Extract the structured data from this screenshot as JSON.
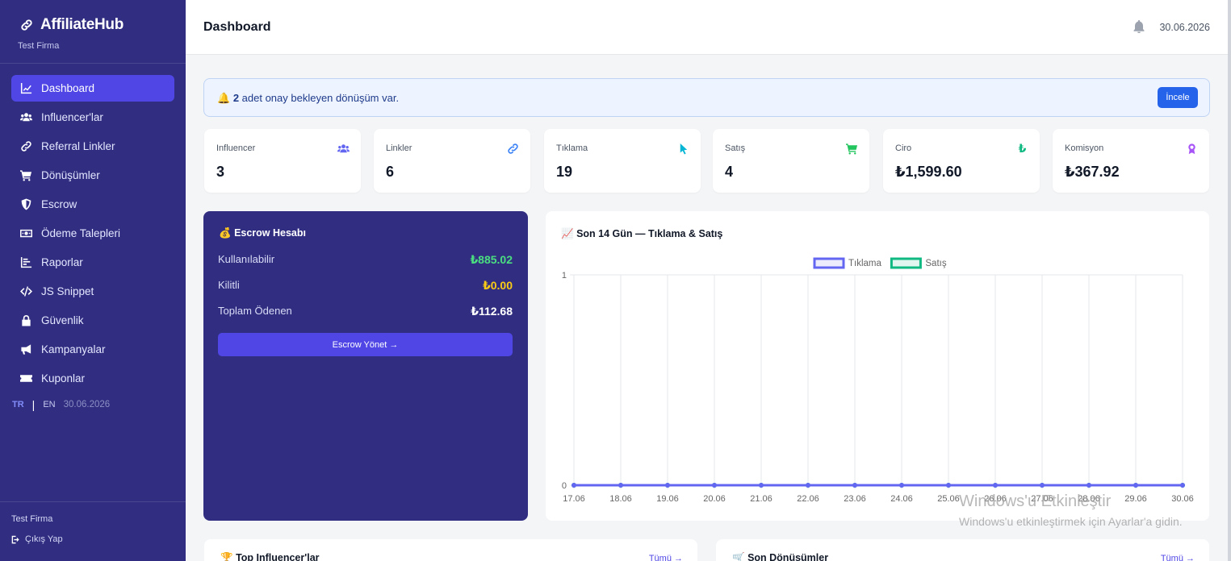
{
  "brand": {
    "name": "AffiliateHub",
    "company": "Test Firma"
  },
  "sidebar": {
    "items": [
      {
        "label": "Dashboard",
        "icon": "chart-line-icon",
        "active": true
      },
      {
        "label": "Influencer'lar",
        "icon": "users-icon"
      },
      {
        "label": "Referral Linkler",
        "icon": "link-icon"
      },
      {
        "label": "Dönüşümler",
        "icon": "cart-icon"
      },
      {
        "label": "Escrow",
        "icon": "shield-icon"
      },
      {
        "label": "Ödeme Talepleri",
        "icon": "money-icon"
      },
      {
        "label": "Raporlar",
        "icon": "bar-chart-icon"
      },
      {
        "label": "JS Snippet",
        "icon": "code-icon"
      },
      {
        "label": "Güvenlik",
        "icon": "lock-icon"
      },
      {
        "label": "Kampanyalar",
        "icon": "megaphone-icon"
      },
      {
        "label": "Kuponlar",
        "icon": "ticket-icon"
      }
    ],
    "lang_tr": "TR",
    "lang_sep": "|",
    "lang_en": "EN",
    "lang_date": "30.06.2026",
    "footer_company": "Test Firma",
    "logout": "Çıkış Yap"
  },
  "header": {
    "title": "Dashboard",
    "date": "30.06.2026"
  },
  "alert": {
    "count": "2",
    "text": " adet onay bekleyen dönüşüm var.",
    "button": "İncele"
  },
  "stats": [
    {
      "label": "Influencer",
      "value": "3",
      "icon": "users-icon",
      "color": "#6366f1"
    },
    {
      "label": "Linkler",
      "value": "6",
      "icon": "link-icon",
      "color": "#3b82f6"
    },
    {
      "label": "Tıklama",
      "value": "19",
      "icon": "pointer-icon",
      "color": "#06b6d4"
    },
    {
      "label": "Satış",
      "value": "4",
      "icon": "cart-icon",
      "color": "#22c55e"
    },
    {
      "label": "Ciro",
      "value": "₺1,599.60",
      "icon": "lira-icon",
      "color": "#10b981"
    },
    {
      "label": "Komisyon",
      "value": "₺367.92",
      "icon": "award-icon",
      "color": "#a855f7"
    }
  ],
  "escrow": {
    "title": "Escrow Hesabı",
    "available_label": "Kullanılabilir",
    "available_value": "₺885.02",
    "locked_label": "Kilitli",
    "locked_value": "₺0.00",
    "paid_label": "Toplam Ödenen",
    "paid_value": "₺112.68",
    "button": "Escrow Yönet →",
    "colors": {
      "available": "#4ade80",
      "locked": "#facc15",
      "paid": "#ffffff"
    }
  },
  "chart_panel": {
    "title": "Son 14 Gün — Tıklama & Satış"
  },
  "chart_data": {
    "type": "line",
    "x": [
      "17.06",
      "18.06",
      "19.06",
      "20.06",
      "21.06",
      "22.06",
      "23.06",
      "24.06",
      "25.06",
      "26.06",
      "27.06",
      "28.06",
      "29.06",
      "30.06"
    ],
    "series": [
      {
        "name": "Tıklama",
        "values": [
          0,
          0,
          0,
          0,
          0,
          0,
          0,
          0,
          0,
          0,
          0,
          0,
          0,
          0
        ],
        "color": "#6366f1"
      },
      {
        "name": "Satış",
        "values": [
          0,
          0,
          0,
          0,
          0,
          0,
          0,
          0,
          0,
          0,
          0,
          0,
          0,
          0
        ],
        "color": "#10b981"
      }
    ],
    "ylim": [
      0,
      1
    ],
    "yticks": [
      "0",
      "1"
    ],
    "legend": "top-center",
    "grid": true
  },
  "bottom": {
    "top_influencers": "Top Influencer'lar",
    "recent_conversions": "Son Dönüşümler",
    "view_all": "Tümü →"
  },
  "watermark": {
    "line1": "Windows'u Etkinleştir",
    "line2": "Windows'u etkinleştirmek için Ayarlar'a gidin."
  }
}
